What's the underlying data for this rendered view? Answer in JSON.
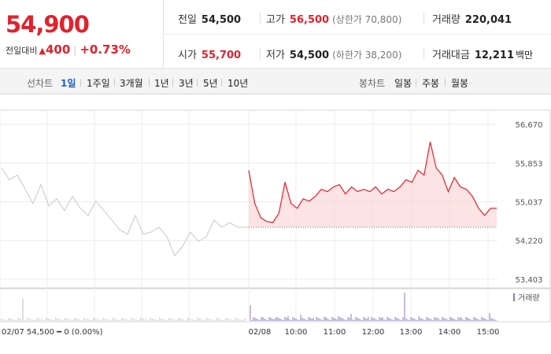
{
  "summary": {
    "price": "54,900",
    "change_label": "전일대비",
    "change_amount": "400",
    "change_percent": "+0.73%"
  },
  "stats": {
    "prev_close": {
      "label": "전일",
      "value": "54,500"
    },
    "high": {
      "label": "고가",
      "value": "56,500",
      "sub": "(상한가 70,800)"
    },
    "volume": {
      "label": "거래량",
      "value": "220,041"
    },
    "open": {
      "label": "시가",
      "value": "55,700"
    },
    "low": {
      "label": "저가",
      "value": "54,500",
      "sub": "(하한가 38,200)"
    },
    "trade_value": {
      "label": "거래대금",
      "value": "12,211",
      "unit": "백만"
    }
  },
  "line_tabs": {
    "label": "선차트",
    "items": [
      "1일",
      "1주일",
      "3개월",
      "1년",
      "3년",
      "5년",
      "10년"
    ],
    "selected": "1일"
  },
  "candle_tabs": {
    "label": "봉차트",
    "items": [
      "일봉",
      "주봉",
      "월봉"
    ]
  },
  "chart_data": {
    "type": "line",
    "y_ticks": [
      "56,670",
      "55,853",
      "55,037",
      "54,220",
      "53,403"
    ],
    "y_range": [
      53403,
      56670
    ],
    "x_labels": [
      "02/08",
      "10:00",
      "11:00",
      "12:00",
      "13:00",
      "14:00",
      "15:00"
    ],
    "reference_line": 54500,
    "prev_day_label": "02/07",
    "prev_day_summary": "54,500 ━ 0 (0.00%)",
    "volume_label": "거래량",
    "series": [
      {
        "x": [
          "09:00",
          "09:05",
          "09:10",
          "09:15",
          "09:20",
          "09:30",
          "09:40",
          "09:50",
          "10:00",
          "10:10",
          "10:20",
          "10:30",
          "10:40",
          "10:50",
          "11:00",
          "11:10",
          "11:20",
          "11:30",
          "11:40",
          "11:50",
          "12:00",
          "12:10",
          "12:20",
          "12:30",
          "12:40",
          "12:50",
          "13:00",
          "13:05",
          "13:10",
          "13:20",
          "13:30",
          "13:40",
          "13:50",
          "14:00",
          "14:10",
          "14:20",
          "14:30",
          "14:40",
          "14:50",
          "15:00",
          "15:10",
          "15:20"
        ],
        "values": [
          55700,
          55000,
          54700,
          54620,
          54600,
          54800,
          55450,
          55000,
          54900,
          55100,
          55050,
          55150,
          55300,
          55250,
          55350,
          55400,
          55200,
          55350,
          55250,
          55300,
          55250,
          55350,
          55200,
          55300,
          55250,
          55350,
          55500,
          55450,
          55700,
          55600,
          56300,
          55750,
          55600,
          55250,
          55550,
          55350,
          55300,
          55150,
          54900,
          54750,
          54900,
          54900
        ]
      }
    ],
    "prev_day_values": [
      55750,
      55500,
      55600,
      55300,
      55000,
      55400,
      54950,
      55100,
      54850,
      55150,
      54900,
      54750,
      55050,
      54850,
      54650,
      54450,
      54350,
      54750,
      54350,
      54400,
      54500,
      54300,
      53900,
      54100,
      54400,
      54200,
      54300,
      54650,
      54500,
      54600,
      54500,
      54500
    ],
    "colors": {
      "up": "#e0222d",
      "prev": "#c8c8c8",
      "fill": "#fbd7d9",
      "volume": "#8e7bb0"
    }
  }
}
